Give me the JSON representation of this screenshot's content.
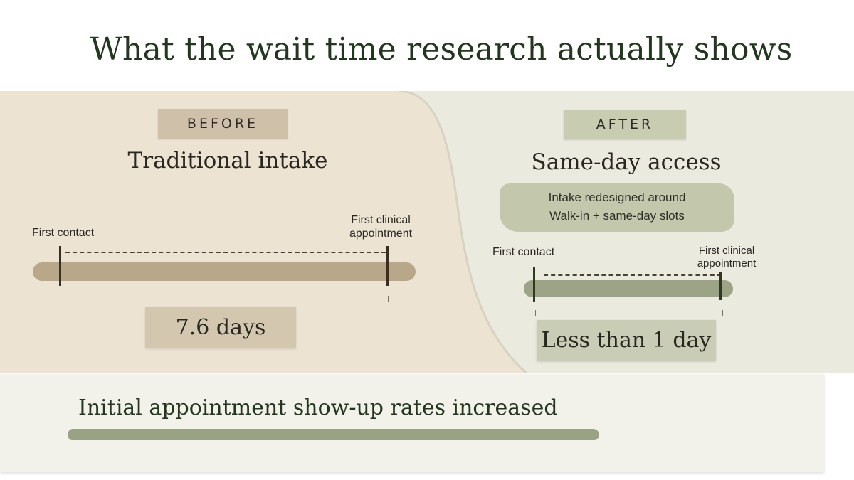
{
  "title": "What the wait time research actually shows",
  "before": {
    "tag": "BEFORE",
    "heading": "Traditional intake",
    "start_label": "First contact",
    "end_label_line1": "First clinical",
    "end_label_line2": "appointment",
    "result": "7.6 days",
    "wait_days": 7.6
  },
  "after": {
    "tag": "AFTER",
    "heading": "Same-day access",
    "note_line1": "Intake redesigned around",
    "note_line2": "Walk-in + same-day slots",
    "start_label": "First contact",
    "end_label_line1": "First clinical",
    "end_label_line2": "appointment",
    "result": "Less than 1 day"
  },
  "footer": "Initial appointment show-up rates increased",
  "colors": {
    "title": "#23361f",
    "before_accent": "#b9a789",
    "after_accent": "#9ca386"
  }
}
